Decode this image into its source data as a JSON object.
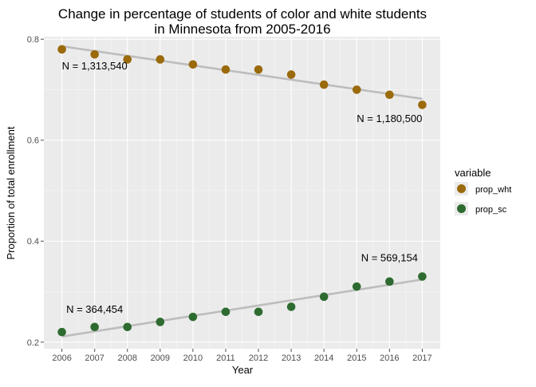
{
  "chart_data": {
    "type": "scatter",
    "title_line1": "Change in percentage of students of color and white students",
    "title_line2": "in Minnesota from 2005-2016",
    "xlabel": "Year",
    "ylabel": "Proportion of total enrollment",
    "x": [
      2006,
      2007,
      2008,
      2009,
      2010,
      2011,
      2012,
      2013,
      2014,
      2015,
      2016,
      2017
    ],
    "xticks": [
      "2006",
      "2007",
      "2008",
      "2009",
      "2010",
      "2011",
      "2012",
      "2013",
      "2014",
      "2015",
      "2016",
      "2017"
    ],
    "yticks": [
      0.2,
      0.4,
      0.6,
      0.8
    ],
    "ytick_labels": [
      "0.2",
      "0.4",
      "0.6",
      "0.8"
    ],
    "xlim": [
      2005.45,
      2017.55
    ],
    "ylim": [
      0.187,
      0.805
    ],
    "grid": true,
    "legend": {
      "title": "variable",
      "position": "right"
    },
    "series": [
      {
        "name": "prop_wht",
        "color": "#9A6A0B",
        "values": [
          0.78,
          0.77,
          0.76,
          0.76,
          0.75,
          0.74,
          0.74,
          0.73,
          0.71,
          0.7,
          0.69,
          0.67
        ],
        "trend": [
          0.786,
          0.682
        ]
      },
      {
        "name": "prop_sc",
        "color": "#2E6B30",
        "values": [
          0.22,
          0.23,
          0.23,
          0.24,
          0.25,
          0.26,
          0.26,
          0.27,
          0.29,
          0.31,
          0.32,
          0.33
        ],
        "trend": [
          0.211,
          0.324
        ]
      }
    ],
    "trend_color": "#BDBDBD",
    "annotations": [
      {
        "text": "N = 1,313,540",
        "x": 2007.0,
        "y": 0.74
      },
      {
        "text": "N = 1,180,500",
        "x": 2016.0,
        "y": 0.636
      },
      {
        "text": "N = 364,454",
        "x": 2007.0,
        "y": 0.258
      },
      {
        "text": "N = 569,154",
        "x": 2016.0,
        "y": 0.36
      }
    ]
  }
}
